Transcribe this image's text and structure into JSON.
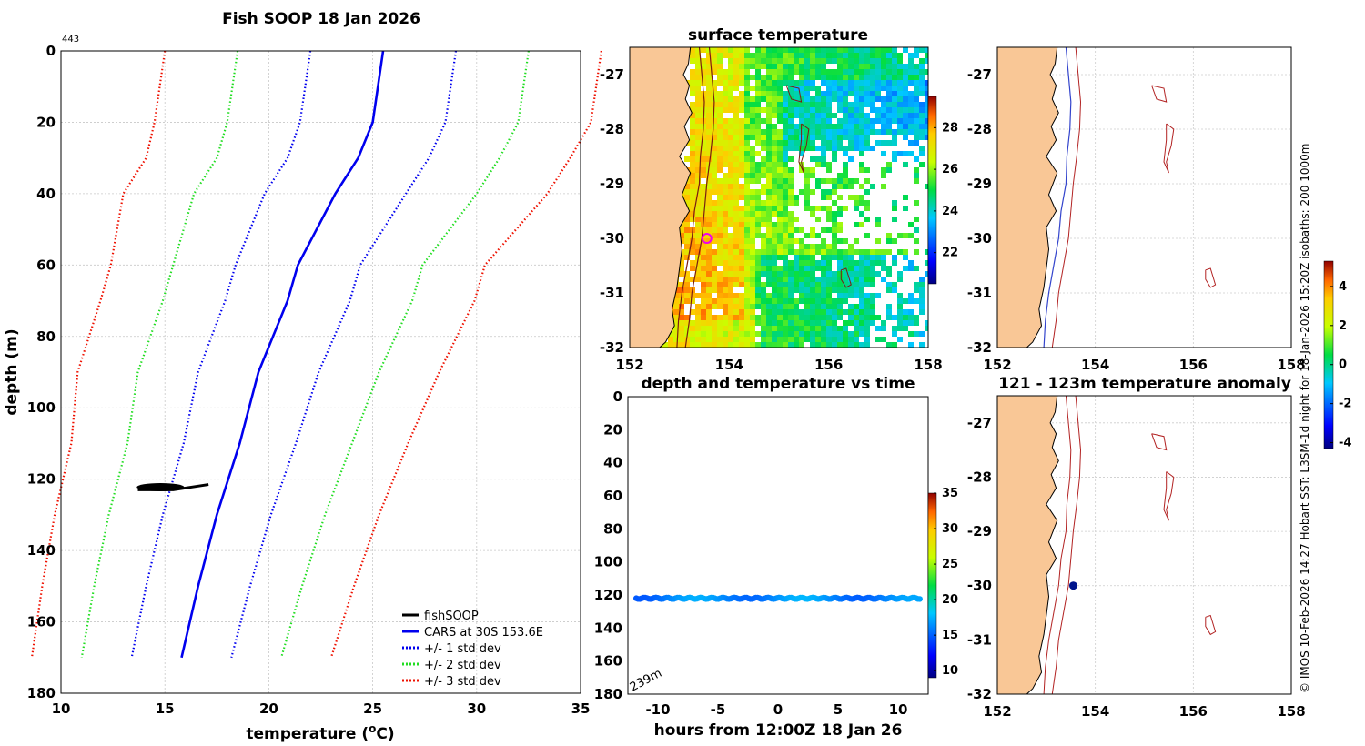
{
  "figure": {
    "credit": "© IMOS 10-Feb-2026 14:27 Hobart SST: L3SM-1d night for 18-Jan-2026 15:20Z isobaths: 200  1000m"
  },
  "chart_data": [
    {
      "id": "profile",
      "type": "line",
      "title": "Fish SOOP 18 Jan 2026",
      "corner_label": "443",
      "xlabel": "temperature (",
      "xlabel_sup": "o",
      "xlabel_end": "C)",
      "ylabel": "depth (m)",
      "xlim": [
        10,
        35
      ],
      "ylim": [
        0,
        180
      ],
      "y_reversed": true,
      "xticks": [
        10,
        15,
        20,
        25,
        30,
        35
      ],
      "yticks": [
        0,
        20,
        40,
        60,
        80,
        100,
        120,
        140,
        160,
        180
      ],
      "depths": [
        0,
        20,
        30,
        40,
        60,
        70,
        90,
        110,
        130,
        150,
        170
      ],
      "cars_mean": [
        25.5,
        25.0,
        24.3,
        23.2,
        21.4,
        20.9,
        19.5,
        18.6,
        17.5,
        16.6,
        15.8
      ],
      "std": [
        3.5,
        3.5,
        3.4,
        3.4,
        3.0,
        3.0,
        2.9,
        2.7,
        2.6,
        2.5,
        2.4
      ],
      "fishsoop": {
        "temp_min": 13.7,
        "temp_max": 17.1,
        "depth_min": 121.5,
        "depth_max": 123
      },
      "legend": [
        {
          "label": "fishSOOP",
          "color": "#000000",
          "style": "solid"
        },
        {
          "label": "CARS at 30S 153.6E",
          "color": "#0000ee",
          "style": "solid"
        },
        {
          "label": "+/- 1 std dev",
          "color": "#0000ee",
          "style": "dotted"
        },
        {
          "label": "+/- 2 std dev",
          "color": "#22dd22",
          "style": "dotted"
        },
        {
          "label": "+/- 3 std dev",
          "color": "#ee1100",
          "style": "dotted"
        }
      ]
    },
    {
      "id": "sst_map",
      "type": "heatmap",
      "title": "surface temperature",
      "xlim": [
        152,
        158
      ],
      "ylim": [
        -32,
        -26.5
      ],
      "xticks": [
        152,
        154,
        156,
        158
      ],
      "yticks": [
        -27,
        -28,
        -29,
        -30,
        -31,
        -32
      ],
      "colorbar": {
        "range": [
          20.5,
          29.5
        ],
        "ticks": [
          22,
          24,
          26,
          28
        ]
      },
      "marker": {
        "lon": 153.55,
        "lat": -30.0
      }
    },
    {
      "id": "time_series",
      "type": "scatter",
      "title": "depth and temperature vs time",
      "xlabel": "hours from 12:00Z 18 Jan 26",
      "xlim": [
        -12.5,
        12.5
      ],
      "ylim": [
        0,
        180
      ],
      "y_reversed": true,
      "xticks": [
        -10,
        -5,
        0,
        5,
        10
      ],
      "yticks": [
        0,
        20,
        40,
        60,
        80,
        100,
        120,
        140,
        160,
        180
      ],
      "bottom_depth_label": "239m",
      "colorbar": {
        "range": [
          9,
          35
        ],
        "ticks": [
          10,
          15,
          20,
          25,
          30,
          35
        ]
      },
      "track": {
        "t_start": -11.8,
        "t_end": 11.8,
        "depth": 122
      }
    },
    {
      "id": "isobath_map",
      "type": "map",
      "title": "",
      "xlim": [
        152,
        158
      ],
      "ylim": [
        -32,
        -26.5
      ],
      "xticks": [
        152,
        154,
        156,
        158
      ],
      "yticks": [
        -27,
        -28,
        -29,
        -30,
        -31,
        -32
      ]
    },
    {
      "id": "anomaly_map",
      "type": "map",
      "title": "121 - 123m temperature anomaly",
      "xlim": [
        152,
        158
      ],
      "ylim": [
        -32,
        -26.5
      ],
      "xticks": [
        152,
        154,
        156,
        158
      ],
      "yticks": [
        -27,
        -28,
        -29,
        -30,
        -31,
        -32
      ],
      "colorbar": {
        "range": [
          -4.3,
          5.3
        ],
        "ticks": [
          -4,
          -2,
          0,
          2,
          4
        ]
      },
      "marker": {
        "lon": 153.55,
        "lat": -30.0
      }
    }
  ]
}
